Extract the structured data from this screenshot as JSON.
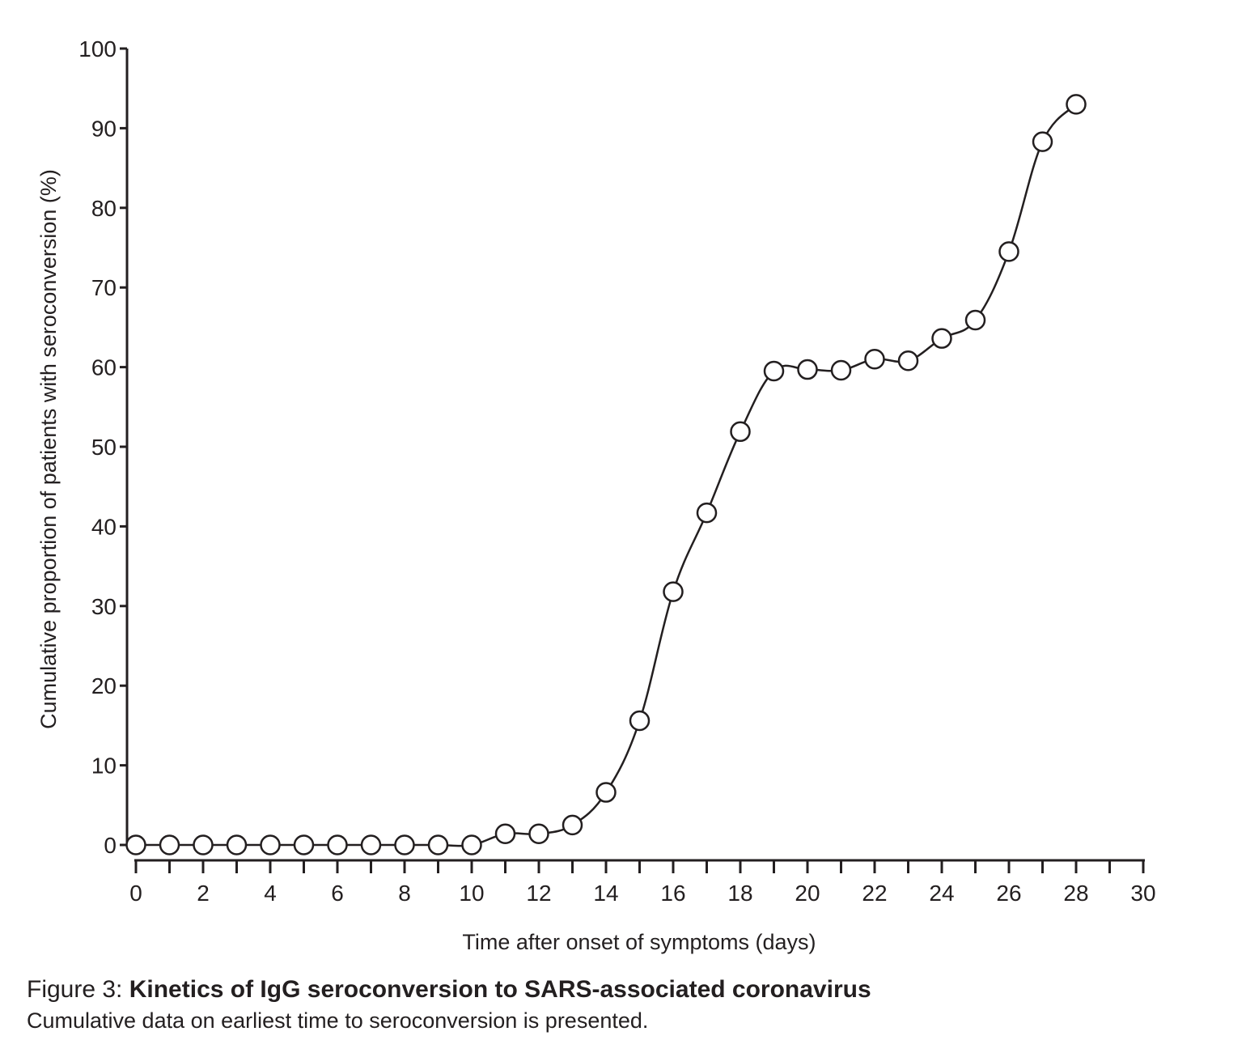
{
  "chart_data": {
    "type": "line",
    "title": "",
    "xlabel": "Time after onset of symptoms (days)",
    "ylabel": "Cumulative proportion of patients with seroconversion (%)",
    "xlim": [
      0,
      30
    ],
    "ylim": [
      0,
      100
    ],
    "x_ticks_major": [
      0,
      2,
      4,
      6,
      8,
      10,
      12,
      14,
      16,
      18,
      20,
      22,
      24,
      26,
      28,
      30
    ],
    "x_ticks_minor": [
      1,
      3,
      5,
      7,
      9,
      11,
      13,
      15,
      17,
      19,
      21,
      23,
      25,
      27,
      29
    ],
    "y_ticks": [
      0,
      10,
      20,
      30,
      40,
      50,
      60,
      70,
      80,
      90,
      100
    ],
    "grid": false,
    "legend": "none",
    "marker": "open-circle",
    "line_color": "#231f20",
    "x": [
      0,
      1,
      2,
      3,
      4,
      5,
      6,
      7,
      8,
      9,
      10,
      11,
      12,
      13,
      14,
      15,
      16,
      17,
      18,
      19,
      20,
      21,
      22,
      23,
      24,
      25,
      26,
      27,
      28
    ],
    "series": [
      {
        "values": [
          0,
          0,
          0,
          0,
          0,
          0,
          0,
          0,
          0,
          0,
          0,
          1.4,
          1.4,
          2.5,
          6.6,
          15.6,
          31.8,
          41.7,
          51.9,
          59.5,
          59.7,
          59.6,
          61.0,
          60.8,
          63.6,
          65.9,
          74.5,
          88.3,
          93.0
        ]
      }
    ]
  },
  "caption": {
    "prefix": "Figure 3: ",
    "title": "Kinetics of IgG seroconversion to SARS-associated coronavirus",
    "subtitle": "Cumulative data on earliest time to seroconversion is presented."
  }
}
